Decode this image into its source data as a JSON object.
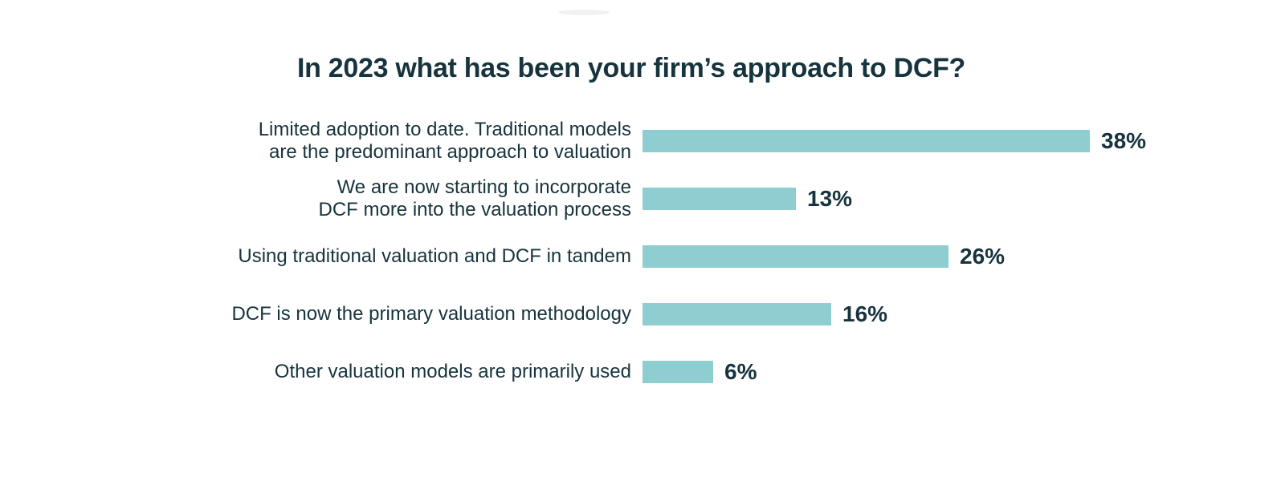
{
  "colors": {
    "background": "#ffffff",
    "bar": "#8ecdd0",
    "text": "#17333e"
  },
  "chart_data": {
    "type": "bar",
    "orientation": "horizontal",
    "title": "In 2023 what has been your firm’s approach to DCF?",
    "categories": [
      "Limited adoption to date. Traditional models are the predominant approach to valuation",
      "We are now starting to incorporate DCF more into the valuation process",
      "Using traditional valuation and DCF in tandem",
      "DCF is now the primary valuation methodology",
      "Other valuation models are primarily used"
    ],
    "category_line_breaks": [
      [
        "Limited adoption to date. Traditional models",
        "are the predominant approach to valuation"
      ],
      [
        "We are now starting to incorporate",
        "DCF more into the valuation process"
      ],
      [
        "Using traditional valuation and DCF in tandem"
      ],
      [
        "DCF is now the primary valuation methodology"
      ],
      [
        "Other valuation models are primarily used"
      ]
    ],
    "values": [
      38,
      13,
      26,
      16,
      6
    ],
    "value_labels": [
      "38%",
      "13%",
      "26%",
      "16%",
      "6%"
    ],
    "unit": "%",
    "xlim": [
      0,
      40
    ],
    "grid": false,
    "legend": false,
    "bar_color": "#8ecdd0",
    "text_color": "#17333e"
  }
}
